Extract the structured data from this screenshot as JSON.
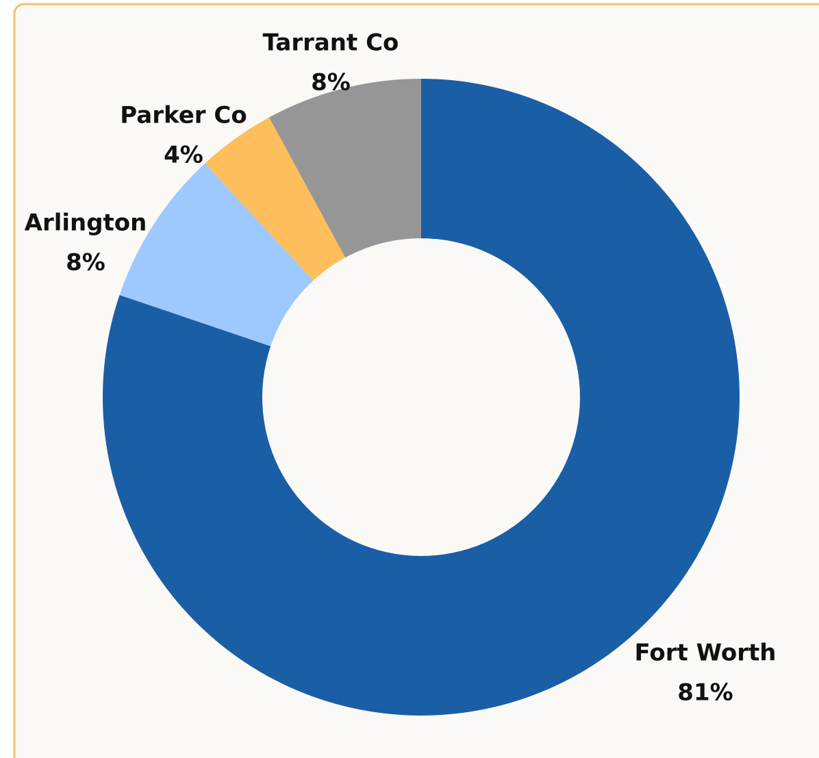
{
  "chart_data": {
    "type": "donut",
    "categories": [
      "Fort Worth",
      "Arlington",
      "Parker Co",
      "Tarrant Co"
    ],
    "values": [
      81,
      8,
      4,
      8
    ],
    "value_labels": [
      "81%",
      "8%",
      "4%",
      "8%"
    ],
    "colors": [
      "#1a5ea6",
      "#9ec9ff",
      "#ffbe5c",
      "#969696"
    ]
  }
}
